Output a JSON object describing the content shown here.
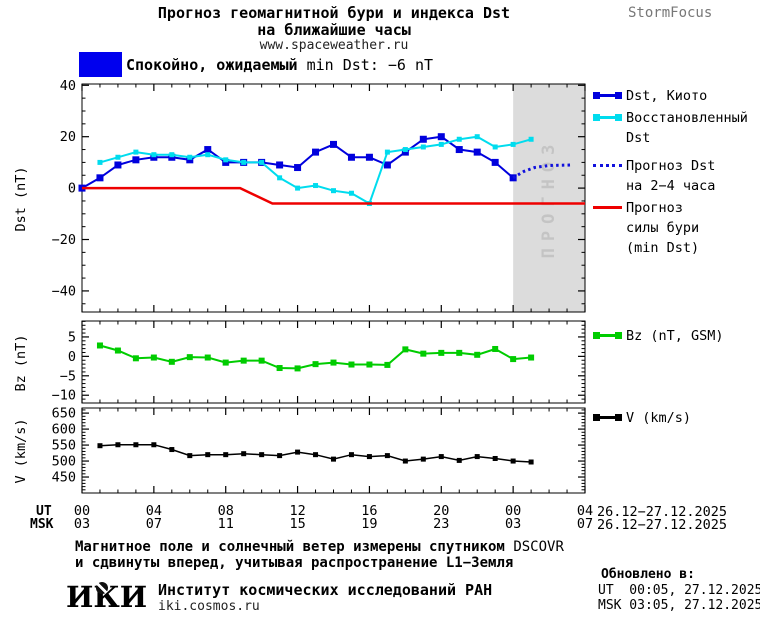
{
  "header": {
    "title_line1": "Прогноз геомагнитной бури и индекса Dst",
    "title_line2": "на ближайшие часы",
    "website": "www.spaceweather.ru",
    "brand": "StormFocus",
    "status_ru": "Спокойно, ожидаемый",
    "status_rest": "min Dst: −6 nT",
    "status_color": "#0000ee"
  },
  "xaxis": {
    "ut_label": "UT",
    "msk_label": "MSK",
    "tick_hours": [
      0,
      4,
      8,
      12,
      16,
      20,
      24,
      28
    ],
    "ut_tick_labels": [
      "00",
      "04",
      "08",
      "12",
      "16",
      "20",
      "00",
      "04"
    ],
    "msk_tick_labels": [
      "03",
      "07",
      "11",
      "15",
      "19",
      "23",
      "03",
      "07"
    ],
    "minor_step_hours": 1,
    "xlim_hours": [
      0,
      28
    ],
    "date_range_ut": "26.12−27.12.2025",
    "date_range_msk": "26.12−27.12.2025"
  },
  "footer": {
    "note_line1_ru": "Магнитное поле и солнечный ветер измерены спутником",
    "note_line1_en": "DSCOVR",
    "note_line2": "и сдвинуты вперед, учитывая распространение L1−Земля",
    "logo_text": "ИКИ",
    "institute": "Институт космических исследований РАН",
    "site": "iki.cosmos.ru",
    "updated_label": "Обновлено в:",
    "updated_ut": "UT  00:05, 27.12.2025",
    "updated_msk": "MSK 03:05, 27.12.2025"
  },
  "chart_data": [
    {
      "id": "dst",
      "type": "line",
      "ylabel": "Dst (nT)",
      "ylim": [
        -48.2,
        40.5
      ],
      "ytick_values": [
        40,
        20,
        0,
        -20,
        -40
      ],
      "ytick_labels": [
        "40",
        "20",
        "0",
        "−20",
        "−40"
      ],
      "ytick_minor_step": 5,
      "forecast_region": {
        "from_hour": 24,
        "to_hour": 28,
        "label": "ПРОГНОЗ",
        "fill": "#dcdcdc",
        "text_color": "#c4c4c4"
      },
      "series": [
        {
          "name": "Dst, Киото",
          "color": "#0000dd",
          "style": "solid",
          "marker": "square",
          "marker_size": 7,
          "width": 2,
          "x": [
            0,
            1,
            2,
            3,
            4,
            5,
            6,
            7,
            8,
            9,
            10,
            11,
            12,
            13,
            14,
            15,
            16,
            17,
            18,
            19,
            20,
            21,
            22,
            23,
            24
          ],
          "values": [
            0,
            4,
            9,
            11,
            12,
            12,
            11,
            15,
            10,
            10,
            10,
            9,
            8,
            14,
            17,
            12,
            12,
            9,
            14,
            19,
            20,
            15,
            14,
            10,
            4
          ]
        },
        {
          "name": "Восстановленный Dst",
          "color": "#00dcee",
          "style": "solid",
          "marker": "square",
          "marker_size": 5,
          "width": 2,
          "x": [
            1,
            2,
            3,
            4,
            5,
            6,
            7,
            8,
            9,
            10,
            11,
            12,
            13,
            14,
            15,
            16,
            17,
            18,
            19,
            20,
            21,
            22,
            23,
            24,
            25
          ],
          "values": [
            10,
            12,
            14,
            13,
            13,
            12,
            13,
            11,
            10,
            10,
            4,
            0,
            1,
            -1,
            -2,
            -6,
            14,
            15,
            16,
            17,
            19,
            20,
            16,
            17,
            19
          ]
        },
        {
          "name": "Прогноз Dst на 2−4 часа",
          "color": "#1111dd",
          "style": "dotted",
          "marker": "none",
          "width": 3,
          "x": [
            24,
            24.6,
            25.2,
            26,
            27.3
          ],
          "values": [
            4,
            6.5,
            8,
            8.8,
            9
          ]
        },
        {
          "name": "Прогноз силы бури (min Dst)",
          "color": "#ee0000",
          "style": "solid",
          "marker": "none",
          "width": 2.5,
          "x": [
            0,
            8.8,
            10.6,
            28
          ],
          "values": [
            0,
            0,
            -6,
            -6
          ]
        }
      ],
      "legend": [
        {
          "lines": [
            "Dst, Киото"
          ],
          "marker": "squares",
          "color": "#0000dd"
        },
        {
          "lines": [
            "Восстановленный",
            "Dst"
          ],
          "marker": "squares",
          "color": "#00dcee"
        },
        {
          "lines": [
            "Прогноз Dst",
            "на 2−4 часа"
          ],
          "marker": "dotted",
          "color": "#1111dd"
        },
        {
          "lines": [
            "Прогноз",
            "силы бури",
            "(min Dst)"
          ],
          "marker": "line",
          "color": "#ee0000"
        }
      ]
    },
    {
      "id": "bz",
      "type": "line",
      "ylabel": "Bz (nT)",
      "ylim": [
        -12,
        9.1
      ],
      "ytick_values": [
        5,
        0,
        -5,
        -10
      ],
      "ytick_labels": [
        "5",
        "0",
        "−5",
        "−10"
      ],
      "ytick_minor_step": 1,
      "series": [
        {
          "name": "Bz (nT, GSM)",
          "color": "#00cc00",
          "style": "solid",
          "marker": "square",
          "marker_size": 6,
          "width": 2,
          "x": [
            1,
            2,
            3,
            4,
            5,
            6,
            7,
            8,
            9,
            10,
            11,
            12,
            13,
            14,
            15,
            16,
            17,
            18,
            19,
            20,
            21,
            22,
            23,
            24,
            25
          ],
          "values": [
            2.8,
            1.5,
            -0.5,
            -0.3,
            -1.4,
            -0.2,
            -0.3,
            -1.6,
            -1.1,
            -1.1,
            -3,
            -3.1,
            -2,
            -1.6,
            -2.1,
            -2.1,
            -2.2,
            1.8,
            0.7,
            0.9,
            0.9,
            0.4,
            1.9,
            -0.7,
            -0.3
          ]
        }
      ],
      "legend": [
        {
          "lines": [
            "Bz (nT, GSM)"
          ],
          "marker": "squares",
          "color": "#00cc00"
        }
      ]
    },
    {
      "id": "v",
      "type": "line",
      "ylabel": "V (km/s)",
      "ylim": [
        400,
        666
      ],
      "ytick_values": [
        650,
        600,
        550,
        500,
        450
      ],
      "ytick_labels": [
        "650",
        "600",
        "550",
        "500",
        "450"
      ],
      "ytick_minor_step": 10,
      "series": [
        {
          "name": "V (km/s)",
          "color": "#000000",
          "style": "solid",
          "marker": "square",
          "marker_size": 5,
          "width": 1.5,
          "x": [
            1,
            2,
            3,
            4,
            5,
            6,
            7,
            8,
            9,
            10,
            11,
            12,
            13,
            14,
            15,
            16,
            17,
            18,
            19,
            20,
            21,
            22,
            23,
            24,
            25
          ],
          "values": [
            548,
            551,
            551,
            551,
            536,
            517,
            520,
            520,
            523,
            520,
            517,
            528,
            520,
            506,
            520,
            514,
            517,
            500,
            506,
            514,
            502,
            514,
            508,
            500,
            497
          ]
        }
      ],
      "legend": [
        {
          "lines": [
            "V (km/s)"
          ],
          "marker": "squares",
          "color": "#000000"
        }
      ]
    }
  ]
}
